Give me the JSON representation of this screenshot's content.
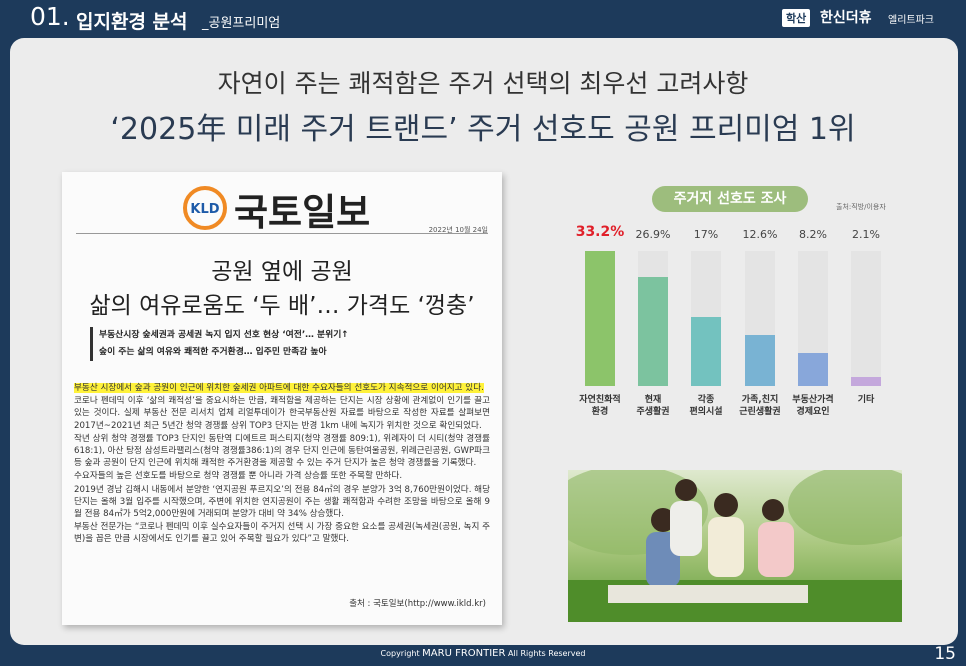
{
  "header": {
    "section_number": "01.",
    "section_title": "입지환경 분석",
    "section_subtitle": "_공원프리미엄",
    "badge": "학산",
    "brand": "한신더휴",
    "brand_sub": "엘리트파크"
  },
  "headline": {
    "line1": "자연이 주는 쾌적함은 주거 선택의 최우선 고려사항",
    "line2": "‘2025年 미래 주거 트랜드’ 주거 선호도 공원 프리미엄 1위"
  },
  "article": {
    "logo_mark": "KLD",
    "paper_name": "국토일보",
    "date": "2022년 10월 24일",
    "title_lines": [
      "공원 옆에 공원",
      "삶의 여유로움도 ‘두 배’… 가격도 ‘껑충’"
    ],
    "subheads": [
      "부동산시장 숲세권과 공세권 녹지 입지 선호 현상 ‘여전’… 분위기↑",
      "숲이 주는 삶의 여유와 쾌적한 주거환경… 입주민 만족감 높아"
    ],
    "lead": "부동산 시장에서 숲과 공원이 인근에 위치한 숲세권 아파트에 대한 수요자들의 선호도가 지속적으로 이어지고 있다.",
    "paragraphs": [
      "코로나 펜데믹 이후 ‘삶의 쾌적성’을 중요시하는 만큼, 쾌적함을 제공하는 단지는 시장 상황에 관계없이 인기를 끌고 있는 것이다. 실제 부동산 전문 리서치 업체 리얼투데이가 한국부동산원 자료를 바탕으로 작성한 자료를 살펴보면 2017년~2021년 최근 5년간 청약 경쟁률 상위 TOP3 단지는 반경 1km 내에 녹지가 위치한 것으로 확인되었다.",
      "작년 상위 청약 경쟁률 TOP3 단지인 동탄역 디에트르 퍼스티지(청약 경쟁률 809:1), 위례자이 더 시티(청약 경쟁률 618:1), 아산 탕정 삼성트라팰리스(청약 경쟁률386:1)의 경우 단지 인근에 동탄여울공원, 위례근린공원, GWP파크 등 숲과 공원이 단지 인근에 위치해 쾌적한 주거환경을 제공할 수 있는 주거 단지가 높은 청약 경쟁률을 기록했다.",
      "수요자들의 높은 선호도를 바탕으로 청약 경쟁률 뿐 아니라 가격 상승률 또한 주목할 만하다.",
      "2019년 경남 김해시 내동에서 분양한 ‘연지공원 푸르지오’의 전용 84㎡의 경우 분양가 3억 8,760만원이었다. 해당 단지는 올해 3월 입주를 시작했으며, 주변에 위치한 연지공원이 주는 생활 쾌적함과 수려한 조망을 바탕으로 올해 9월 전용 84㎡가 5억2,000만원에 거래되며 분양가 대비 약 34% 상승했다.",
      "부동산 전문가는 “코로나 펜데믹 이후 실수요자들이 주거지 선택 시 가장 중요한 요소를 공세권(녹세권(공원, 녹지 주변)을 꼽은 만큼 시장에서도 인기를 끌고 있어 주목할 필요가 있다”고 말했다."
    ],
    "source": "출처 : 국토일보(http://www.ikld.kr)"
  },
  "chart_data": {
    "type": "bar",
    "title": "주거지 선호도 조사",
    "source": "출처:직방/이용자",
    "categories": [
      "자연친화적\n환경",
      "현재\n주생활권",
      "각종\n편의시설",
      "가족,친지\n근린생활권",
      "부동산가격\n경제요인",
      "기타"
    ],
    "values": [
      33.2,
      26.9,
      17,
      12.6,
      8.2,
      2.1
    ],
    "value_labels": [
      "33.2%",
      "26.9%",
      "17%",
      "12.6%",
      "8.2%",
      "2.1%"
    ],
    "colors": [
      "#8cc46a",
      "#7cc39f",
      "#73c2bf",
      "#79b3d3",
      "#88a7da",
      "#c4a8dc"
    ],
    "value_label_colors": [
      "#e0202a",
      "#444444",
      "#444444",
      "#444444",
      "#444444",
      "#444444"
    ]
  },
  "footer": {
    "copyright": "Copyright",
    "company": "MARU FRONTIER",
    "rights": "All Rights Reserved",
    "page": "15"
  }
}
